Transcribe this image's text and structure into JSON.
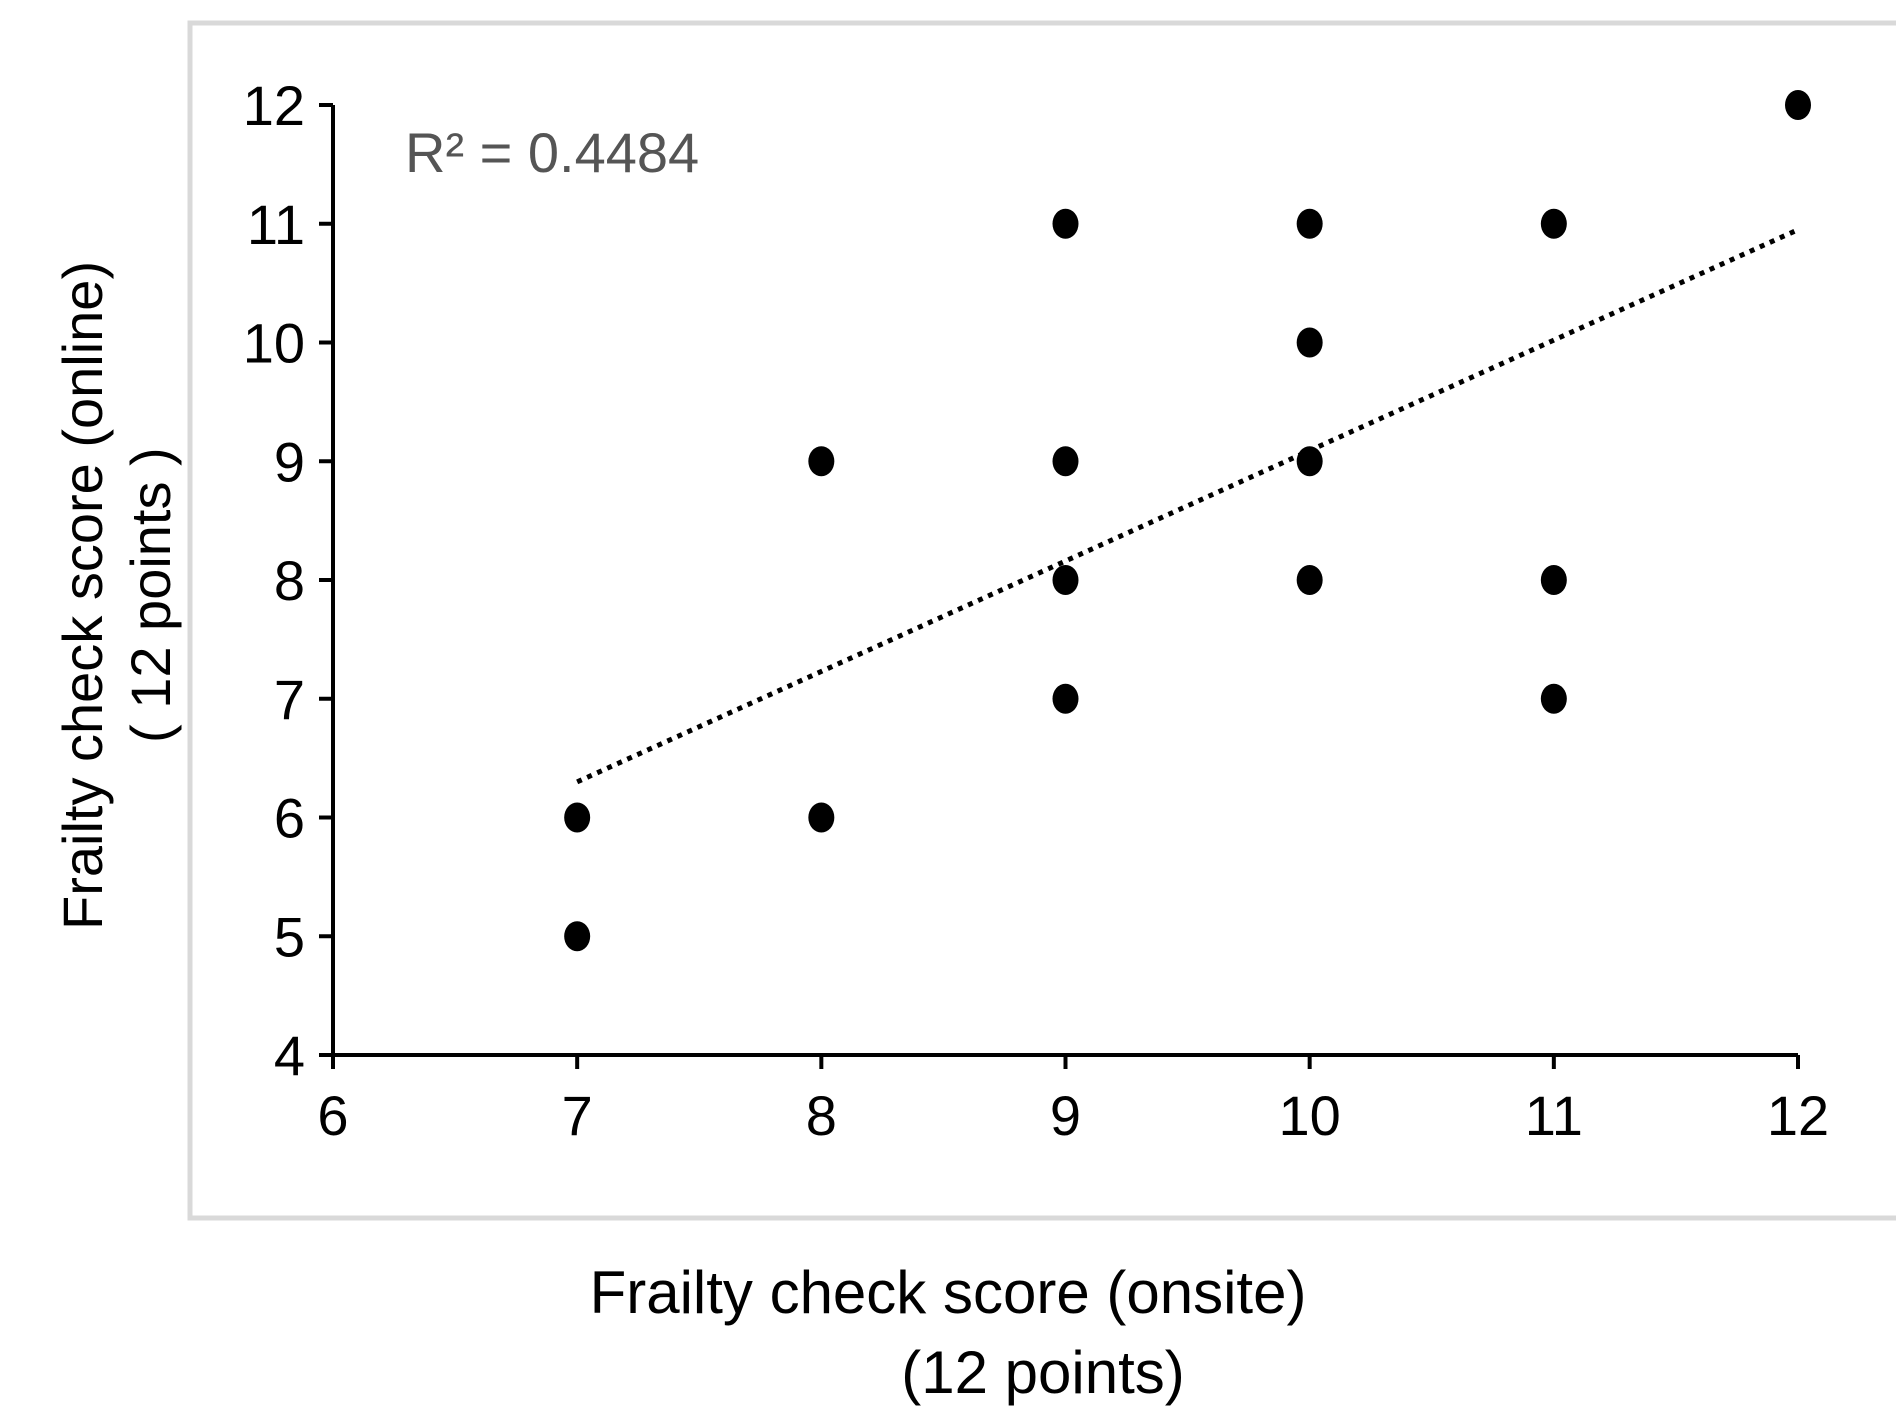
{
  "chart_data": {
    "type": "scatter",
    "title": "",
    "xlabel_lines": [
      "Frailty check score (onsite)",
      "(12 points)"
    ],
    "ylabel_lines": [
      "Frailty check score (online)",
      "( 12 points )"
    ],
    "xlim": [
      6,
      12
    ],
    "ylim": [
      4,
      12
    ],
    "xticks": [
      6,
      7,
      8,
      9,
      10,
      11,
      12
    ],
    "yticks": [
      4,
      5,
      6,
      7,
      8,
      9,
      10,
      11,
      12
    ],
    "grid": false,
    "legend": "none",
    "points": [
      {
        "x": 7,
        "y": 5
      },
      {
        "x": 7,
        "y": 6
      },
      {
        "x": 8,
        "y": 6
      },
      {
        "x": 8,
        "y": 9
      },
      {
        "x": 9,
        "y": 7
      },
      {
        "x": 9,
        "y": 8
      },
      {
        "x": 9,
        "y": 9
      },
      {
        "x": 9,
        "y": 11
      },
      {
        "x": 10,
        "y": 8
      },
      {
        "x": 10,
        "y": 9
      },
      {
        "x": 10,
        "y": 10
      },
      {
        "x": 10,
        "y": 11
      },
      {
        "x": 11,
        "y": 7
      },
      {
        "x": 11,
        "y": 8
      },
      {
        "x": 11,
        "y": 11
      },
      {
        "x": 12,
        "y": 12
      }
    ],
    "trendline": {
      "style": "dotted",
      "from": {
        "x": 7,
        "y": 6.3
      },
      "to": {
        "x": 12,
        "y": 10.95
      }
    },
    "annotation": "R² = 0.4484",
    "colors": {
      "points": "#000000",
      "axes": "#000000",
      "annotation": "#555555",
      "frame": "#d9d9d9"
    }
  }
}
